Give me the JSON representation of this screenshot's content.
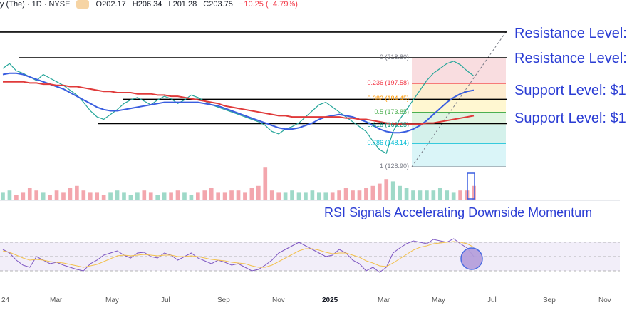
{
  "header": {
    "name": "y (The) · 1D · NYSE",
    "open": "O202.17",
    "high": "H206.34",
    "low": "L201.28",
    "close": "C203.75",
    "change": "−10.25 (−4.79%)"
  },
  "annotations": {
    "resistance_1": "Resistance Level: ",
    "resistance_2": "Resistance Level: ",
    "support_1": "Support Level: $1",
    "support_2": "Support Level: $1",
    "rsi_title": "RSI Signals Accelerating Downside Momentum"
  },
  "chart_data": {
    "type": "line",
    "title": "",
    "x_axis_labels": [
      "24",
      "Mar",
      "May",
      "Jul",
      "Sep",
      "Nov",
      "2025",
      "Mar",
      "May",
      "Jul",
      "Sep",
      "Nov"
    ],
    "fibonacci": [
      {
        "ratio": "0",
        "price": "218.80",
        "label": "0 (218.80)",
        "color": "#787b86"
      },
      {
        "ratio": "0.236",
        "price": "197.58",
        "label": "0.236 (197.58)",
        "color": "#f23645"
      },
      {
        "ratio": "0.382",
        "price": "184.45",
        "label": "0.382 (184.45)",
        "color": "#ff9800"
      },
      {
        "ratio": "0.5",
        "price": "173.85",
        "label": "0.5 (173.85)",
        "color": "#4caf50"
      },
      {
        "ratio": "0.618",
        "price": "163.25",
        "label": "0.618 (163.25)",
        "color": "#089981"
      },
      {
        "ratio": "0.786",
        "price": "148.14",
        "label": "0.786 (148.14)",
        "color": "#00bcd4"
      },
      {
        "ratio": "1",
        "price": "128.90",
        "label": "1 (128.90)",
        "color": "#787b86"
      }
    ],
    "series": [
      {
        "name": "",
        "kind": "close",
        "color": "#26a69a",
        "values": [
          210,
          214,
          208,
          206,
          203,
          200,
          205,
          202,
          199,
          196,
          192,
          188,
          182,
          175,
          170,
          168,
          172,
          176,
          181,
          184,
          186,
          183,
          180,
          184,
          187,
          185,
          181,
          184,
          188,
          186,
          183,
          180,
          178,
          176,
          174,
          172,
          170,
          168,
          166,
          163,
          158,
          156,
          160,
          162,
          165,
          170,
          175,
          180,
          182,
          178,
          174,
          170,
          166,
          162,
          158,
          150,
          143,
          140,
          158,
          168,
          176,
          184,
          192,
          200,
          206,
          210,
          214,
          216,
          213,
          208,
          203.75
        ]
      },
      {
        "name": "",
        "kind": "sma50",
        "color": "#3a5ee0",
        "values": [
          205,
          206,
          206,
          205,
          203,
          201,
          199,
          197,
          195,
          193,
          190,
          187,
          184,
          181,
          178,
          176,
          175,
          175,
          176,
          177,
          178,
          179,
          180,
          181,
          182,
          182,
          182,
          182,
          182,
          182,
          181,
          180,
          179,
          177,
          175,
          173,
          171,
          169,
          167,
          165,
          163,
          161,
          160,
          160,
          161,
          163,
          165,
          168,
          170,
          171,
          172,
          171,
          170,
          168,
          166,
          163,
          160,
          158,
          157,
          157,
          158,
          160,
          163,
          167,
          172,
          177,
          182,
          186,
          189,
          191,
          192
        ]
      },
      {
        "name": "",
        "kind": "sma200",
        "color": "#e03a3a",
        "values": [
          199,
          199,
          199,
          199,
          198,
          198,
          197,
          197,
          196,
          196,
          195,
          195,
          194,
          193,
          192,
          191,
          191,
          190,
          190,
          190,
          189,
          189,
          189,
          188,
          188,
          187,
          187,
          186,
          185,
          184,
          183,
          182,
          181,
          179,
          178,
          177,
          176,
          175,
          174,
          173,
          172,
          171,
          171,
          170,
          170,
          170,
          170,
          170,
          170,
          170,
          170,
          169,
          169,
          168,
          168,
          167,
          166,
          165,
          164,
          164,
          164,
          164,
          164,
          165,
          165,
          166,
          167,
          168,
          169,
          170,
          171
        ]
      }
    ],
    "levels": [
      {
        "price": 240,
        "kind": "resistance"
      },
      {
        "price": 218.8,
        "kind": "resistance"
      },
      {
        "price": 184.45,
        "kind": "support"
      },
      {
        "price": 164.5,
        "kind": "support"
      }
    ],
    "volume": [
      3,
      4,
      2,
      3,
      5,
      4,
      3,
      2,
      4,
      3,
      5,
      6,
      4,
      3,
      3,
      2,
      3,
      4,
      3,
      2,
      3,
      4,
      3,
      2,
      3,
      3,
      4,
      3,
      2,
      3,
      4,
      5,
      3,
      3,
      4,
      4,
      3,
      5,
      6,
      14,
      4,
      3,
      3,
      4,
      3,
      3,
      4,
      3,
      3,
      3,
      4,
      5,
      4,
      4,
      5,
      6,
      7,
      9,
      8,
      6,
      5,
      4,
      4,
      4,
      4,
      5,
      4,
      3,
      4,
      4,
      6
    ],
    "rsi": {
      "upper": 70,
      "lower": 30,
      "values": [
        60,
        55,
        45,
        38,
        35,
        50,
        45,
        40,
        42,
        38,
        35,
        32,
        30,
        40,
        45,
        52,
        55,
        58,
        52,
        48,
        55,
        56,
        50,
        48,
        55,
        52,
        45,
        50,
        55,
        48,
        44,
        40,
        45,
        42,
        38,
        40,
        35,
        30,
        32,
        38,
        45,
        55,
        60,
        65,
        70,
        65,
        60,
        55,
        50,
        52,
        60,
        55,
        45,
        40,
        30,
        35,
        28,
        35,
        55,
        62,
        68,
        72,
        70,
        68,
        74,
        72,
        70,
        75,
        68,
        62,
        50
      ],
      "signal": [
        58,
        56,
        52,
        48,
        45,
        46,
        45,
        43,
        42,
        41,
        39,
        37,
        35,
        37,
        39,
        43,
        47,
        51,
        52,
        51,
        52,
        53,
        52,
        51,
        52,
        52,
        50,
        50,
        51,
        50,
        48,
        46,
        45,
        44,
        42,
        41,
        40,
        37,
        35,
        35,
        38,
        43,
        48,
        53,
        58,
        61,
        61,
        59,
        56,
        54,
        55,
        55,
        52,
        49,
        44,
        41,
        37,
        36,
        41,
        47,
        53,
        59,
        63,
        65,
        68,
        69,
        70,
        71,
        70,
        68,
        63
      ]
    }
  }
}
